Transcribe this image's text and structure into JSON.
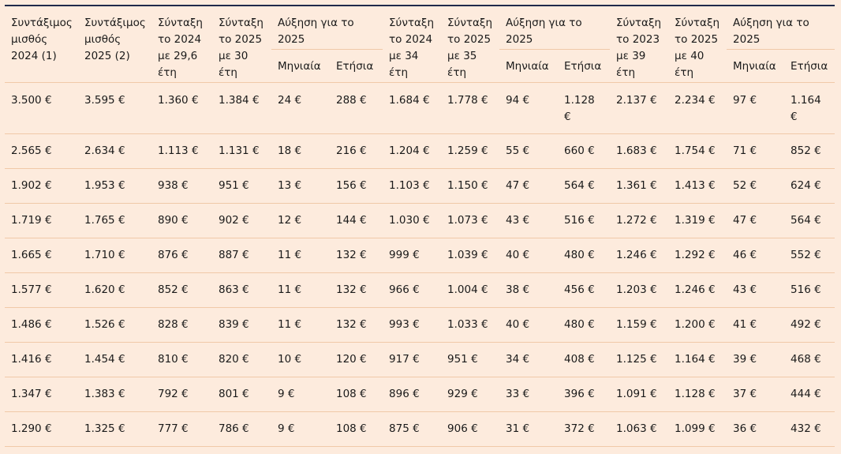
{
  "header": {
    "c1": "Συντάξιμος μισθός 2024 (1)",
    "c2": "Συντάξιμος μισθός 2025 (2)",
    "c3": "Σύνταξη το 2024 με 29,6 έτη",
    "c4": "Σύνταξη το 2025 με 30 έτη",
    "g1": "Αύξηση για το 2025",
    "c7": "Σύνταξη το 2024 με 34 έτη",
    "c8": "Σύνταξη το 2025 με 35 έτη",
    "g2": "Αύξηση για το 2025",
    "c11": "Σύνταξη το 2023 με 39 έτη",
    "c12": "Σύνταξη το 2025 με 40 έτη",
    "g3": "Αύξηση για το 2025",
    "monthly": "Μηνιαία",
    "annual": "Ετήσια"
  },
  "rows": [
    [
      "3.500 €",
      "3.595 €",
      "1.360 €",
      "1.384 €",
      "24 €",
      "288 €",
      "1.684 €",
      "1.778 €",
      "94 €",
      "1.128 €",
      "2.137 €",
      "2.234 €",
      "97 €",
      "1.164 €"
    ],
    [
      "2.565 €",
      "2.634 €",
      "1.113 €",
      "1.131 €",
      "18 €",
      "216 €",
      "1.204 €",
      "1.259 €",
      "55 €",
      "660 €",
      "1.683 €",
      "1.754 €",
      "71 €",
      "852 €"
    ],
    [
      "1.902 €",
      "1.953 €",
      "938 €",
      "951 €",
      "13 €",
      "156 €",
      "1.103 €",
      "1.150 €",
      "47 €",
      "564 €",
      "1.361 €",
      "1.413 €",
      "52 €",
      "624 €"
    ],
    [
      "1.719 €",
      "1.765 €",
      "890 €",
      "902 €",
      "12 €",
      "144 €",
      "1.030 €",
      "1.073 €",
      "43 €",
      "516 €",
      "1.272 €",
      "1.319 €",
      "47 €",
      "564 €"
    ],
    [
      "1.665 €",
      "1.710 €",
      "876 €",
      "887 €",
      "11 €",
      "132 €",
      "999 €",
      "1.039 €",
      "40 €",
      "480 €",
      "1.246 €",
      "1.292 €",
      "46 €",
      "552 €"
    ],
    [
      "1.577 €",
      "1.620 €",
      "852 €",
      "863 €",
      "11 €",
      "132 €",
      "966 €",
      "1.004 €",
      "38 €",
      "456 €",
      "1.203 €",
      "1.246 €",
      "43 €",
      "516 €"
    ],
    [
      "1.486 €",
      "1.526 €",
      "828 €",
      "839 €",
      "11 €",
      "132 €",
      "993 €",
      "1.033 €",
      "40 €",
      "480 €",
      "1.159 €",
      "1.200 €",
      "41 €",
      "492 €"
    ],
    [
      "1.416 €",
      "1.454 €",
      "810 €",
      "820 €",
      "10 €",
      "120 €",
      "917 €",
      "951 €",
      "34 €",
      "408 €",
      "1.125 €",
      "1.164 €",
      "39 €",
      "468 €"
    ],
    [
      "1.347 €",
      "1.383 €",
      "792 €",
      "801 €",
      "9 €",
      "108 €",
      "896 €",
      "929 €",
      "33 €",
      "396 €",
      "1.091 €",
      "1.128 €",
      "37 €",
      "444 €"
    ],
    [
      "1.290 €",
      "1.325 €",
      "777 €",
      "786 €",
      "9 €",
      "108 €",
      "875 €",
      "906 €",
      "31 €",
      "372 €",
      "1.063 €",
      "1.099 €",
      "36 €",
      "432 €"
    ]
  ]
}
